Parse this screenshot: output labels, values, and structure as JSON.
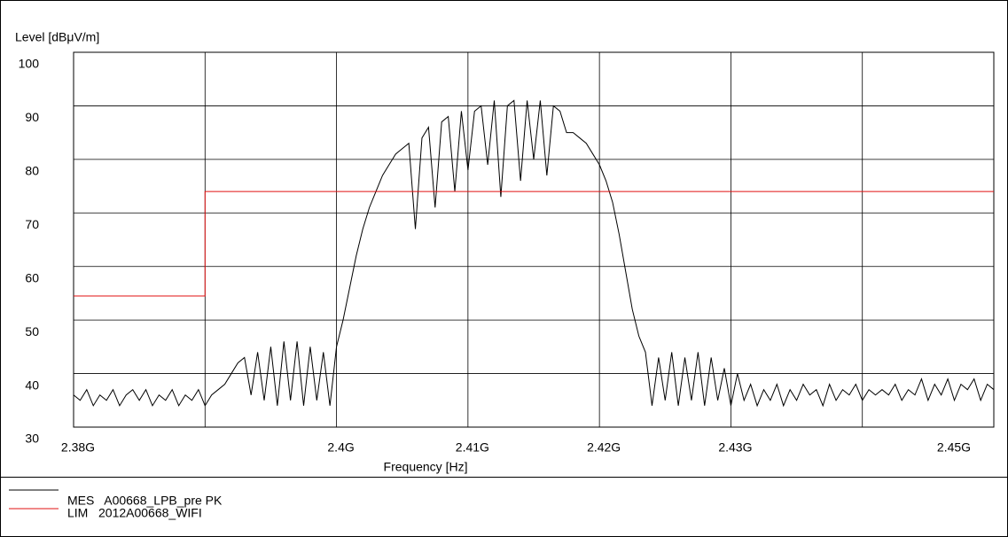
{
  "chart_data": {
    "type": "line",
    "ylabel": "Level [dBμV/m]",
    "xlabel": "Frequency [Hz]",
    "ylim": [
      30,
      100
    ],
    "yticks": [
      30,
      40,
      50,
      60,
      70,
      80,
      90,
      100
    ],
    "xlim": [
      2380000000,
      2450000000
    ],
    "xticks": [
      {
        "value": 2380000000,
        "label": "2.38G"
      },
      {
        "value": 2400000000,
        "label": "2.4G"
      },
      {
        "value": 2410000000,
        "label": "2.41G"
      },
      {
        "value": 2420000000,
        "label": "2.42G"
      },
      {
        "value": 2430000000,
        "label": "2.43G"
      },
      {
        "value": 2450000000,
        "label": "2.45G"
      }
    ],
    "xgrid": [
      2380000000,
      2390000000,
      2400000000,
      2410000000,
      2420000000,
      2430000000,
      2440000000,
      2450000000
    ],
    "grid": true,
    "series": [
      {
        "name": "MES   A00668_LPB_pre PK",
        "color": "#000000",
        "x": [
          2380000000,
          2380500000,
          2381000000,
          2381500000,
          2382000000,
          2382500000,
          2383000000,
          2383500000,
          2384000000,
          2384500000,
          2385000000,
          2385500000,
          2386000000,
          2386500000,
          2387000000,
          2387500000,
          2388000000,
          2388500000,
          2389000000,
          2389500000,
          2390000000,
          2390500000,
          2391000000,
          2391500000,
          2392000000,
          2392500000,
          2393000000,
          2393500000,
          2394000000,
          2394500000,
          2395000000,
          2395500000,
          2396000000,
          2396500000,
          2397000000,
          2397500000,
          2398000000,
          2398500000,
          2399000000,
          2399500000,
          2400000000,
          2400500000,
          2401000000,
          2401500000,
          2402000000,
          2402500000,
          2403000000,
          2403500000,
          2404000000,
          2404500000,
          2405000000,
          2405500000,
          2406000000,
          2406500000,
          2407000000,
          2407500000,
          2408000000,
          2408500000,
          2409000000,
          2409500000,
          2410000000,
          2410500000,
          2411000000,
          2411500000,
          2412000000,
          2412500000,
          2413000000,
          2413500000,
          2414000000,
          2414500000,
          2415000000,
          2415500000,
          2416000000,
          2416500000,
          2417000000,
          2417500000,
          2418000000,
          2418500000,
          2419000000,
          2419500000,
          2420000000,
          2420500000,
          2421000000,
          2421500000,
          2422000000,
          2422500000,
          2423000000,
          2423500000,
          2424000000,
          2424500000,
          2425000000,
          2425500000,
          2426000000,
          2426500000,
          2427000000,
          2427500000,
          2428000000,
          2428500000,
          2429000000,
          2429500000,
          2430000000,
          2430500000,
          2431000000,
          2431500000,
          2432000000,
          2432500000,
          2433000000,
          2433500000,
          2434000000,
          2434500000,
          2435000000,
          2435500000,
          2436000000,
          2436500000,
          2437000000,
          2437500000,
          2438000000,
          2438500000,
          2439000000,
          2439500000,
          2440000000,
          2440500000,
          2441000000,
          2441500000,
          2442000000,
          2442500000,
          2443000000,
          2443500000,
          2444000000,
          2444500000,
          2445000000,
          2445500000,
          2446000000,
          2446500000,
          2447000000,
          2447500000,
          2448000000,
          2448500000,
          2449000000,
          2449500000,
          2450000000
        ],
        "values": [
          36,
          35,
          37,
          34,
          36,
          35,
          37,
          34,
          36,
          37,
          35,
          37,
          34,
          36,
          35,
          37,
          34,
          36,
          35,
          37,
          34,
          36,
          37,
          38,
          40,
          42,
          43,
          36,
          44,
          35,
          45,
          34,
          46,
          35,
          46,
          34,
          45,
          35,
          44,
          34,
          45,
          50,
          56,
          62,
          67,
          71,
          74,
          77,
          79,
          81,
          82,
          83,
          67,
          84,
          86,
          71,
          87,
          88,
          74,
          89,
          78,
          89,
          90,
          79,
          91,
          73,
          90,
          91,
          76,
          91,
          80,
          91,
          77,
          90,
          89,
          85,
          85,
          84,
          83,
          81,
          79,
          76,
          72,
          66,
          59,
          52,
          47,
          44,
          34,
          43,
          35,
          44,
          34,
          43,
          35,
          44,
          34,
          43,
          35,
          41,
          34,
          40,
          35,
          38,
          34,
          37,
          35,
          38,
          34,
          37,
          35,
          38,
          36,
          37,
          34,
          38,
          35,
          37,
          36,
          38,
          35,
          37,
          36,
          37,
          36,
          38,
          35,
          37,
          36,
          39,
          35,
          38,
          36,
          39,
          35,
          38,
          37,
          39,
          35,
          38,
          37
        ]
      },
      {
        "name": "LIM   2012A00668_WIFI",
        "color": "#e01010",
        "x": [
          2380000000,
          2390000000,
          2390000000,
          2450000000
        ],
        "values": [
          54.5,
          54.5,
          74,
          74
        ]
      }
    ]
  }
}
